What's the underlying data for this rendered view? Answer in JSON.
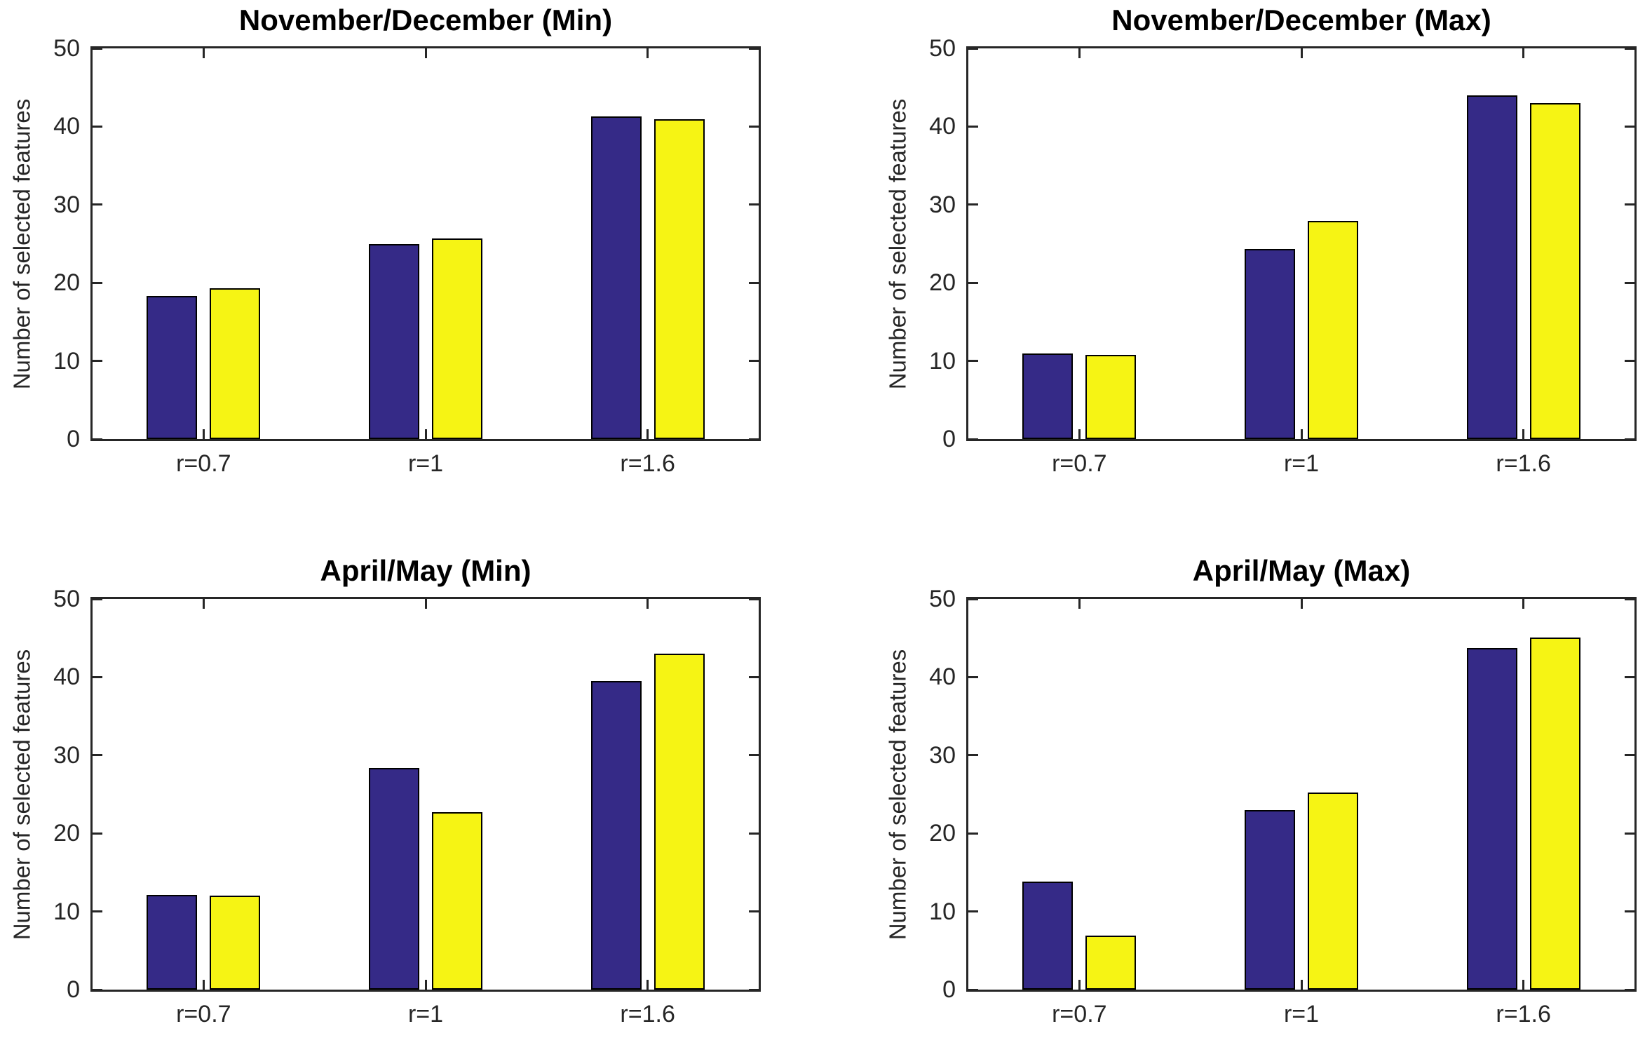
{
  "figure": {
    "background": "#ffffff",
    "axis_color": "#262626",
    "title_color": "#000000",
    "series_colors": {
      "first": "#352A87",
      "second": "#F6F414"
    }
  },
  "chart_data": [
    {
      "type": "bar",
      "title": "November/December (Min)",
      "ylabel": "Number of selected features",
      "xlabel": "",
      "categories": [
        "r=0.7",
        "r=1",
        "r=1.6"
      ],
      "series": [
        {
          "name": "blue",
          "color": "#352A87",
          "values": [
            18.3,
            25.0,
            41.3
          ]
        },
        {
          "name": "yellow",
          "color": "#F6F414",
          "values": [
            19.3,
            25.7,
            40.9
          ]
        }
      ],
      "ylim": [
        0,
        50
      ],
      "yticks": [
        0,
        10,
        20,
        30,
        40,
        50
      ],
      "grid": false,
      "legend": "none"
    },
    {
      "type": "bar",
      "title": "November/December (Max)",
      "ylabel": "Number of selected features",
      "xlabel": "",
      "categories": [
        "r=0.7",
        "r=1",
        "r=1.6"
      ],
      "series": [
        {
          "name": "blue",
          "color": "#352A87",
          "values": [
            11.0,
            24.3,
            44.0
          ]
        },
        {
          "name": "yellow",
          "color": "#F6F414",
          "values": [
            10.8,
            27.9,
            43.0
          ]
        }
      ],
      "ylim": [
        0,
        50
      ],
      "yticks": [
        0,
        10,
        20,
        30,
        40,
        50
      ],
      "grid": false,
      "legend": "none"
    },
    {
      "type": "bar",
      "title": "April/May (Min)",
      "ylabel": "Number of selected features",
      "xlabel": "",
      "categories": [
        "r=0.7",
        "r=1",
        "r=1.6"
      ],
      "series": [
        {
          "name": "blue",
          "color": "#352A87",
          "values": [
            12.1,
            28.4,
            39.5
          ]
        },
        {
          "name": "yellow",
          "color": "#F6F414",
          "values": [
            12.0,
            22.7,
            43.0
          ]
        }
      ],
      "ylim": [
        0,
        50
      ],
      "yticks": [
        0,
        10,
        20,
        30,
        40,
        50
      ],
      "grid": false,
      "legend": "none"
    },
    {
      "type": "bar",
      "title": "April/May (Max)",
      "ylabel": "Number of selected features",
      "xlabel": "",
      "categories": [
        "r=0.7",
        "r=1",
        "r=1.6"
      ],
      "series": [
        {
          "name": "blue",
          "color": "#352A87",
          "values": [
            13.8,
            23.0,
            43.7
          ]
        },
        {
          "name": "yellow",
          "color": "#F6F414",
          "values": [
            6.9,
            25.2,
            45.1
          ]
        }
      ],
      "ylim": [
        0,
        50
      ],
      "yticks": [
        0,
        10,
        20,
        30,
        40,
        50
      ],
      "grid": false,
      "legend": "none"
    }
  ]
}
